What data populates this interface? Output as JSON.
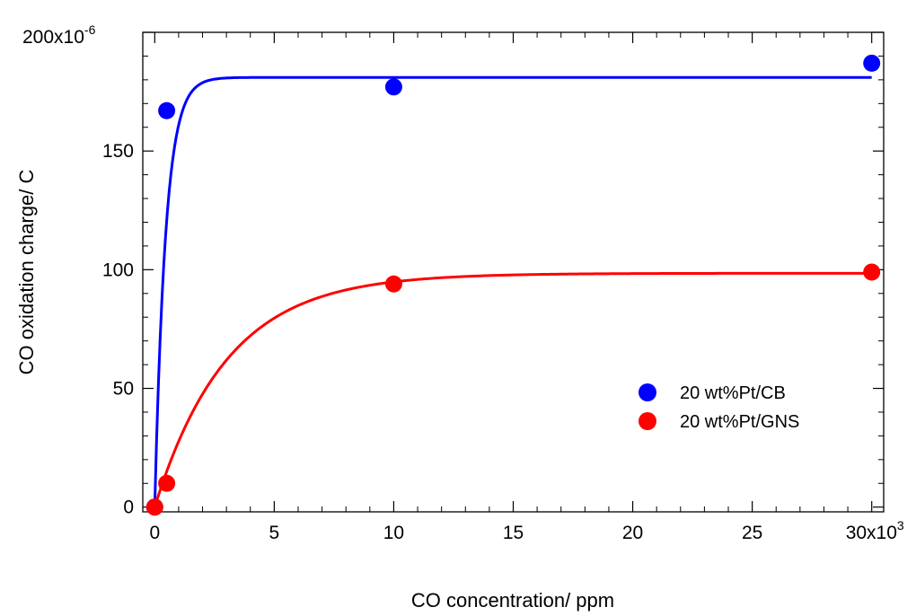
{
  "chart_data": {
    "type": "scatter",
    "xlabel": "CO concentration/ ppm",
    "ylabel": "CO oxidation charge/ C",
    "x_tick_labels": [
      "0",
      "5",
      "10",
      "15",
      "20",
      "25",
      "30x10"
    ],
    "x_tick_values": [
      0,
      5000,
      10000,
      15000,
      20000,
      25000,
      30000
    ],
    "x_exponent": "3",
    "y_tick_labels": [
      "0",
      "50",
      "100",
      "150",
      "200x10"
    ],
    "y_tick_values": [
      0,
      5e-05,
      0.0001,
      0.00015,
      0.0002
    ],
    "y_exponent": "-6",
    "xlim": [
      -500,
      30500
    ],
    "ylim": [
      -2e-06,
      0.0002
    ],
    "grid": false,
    "legend_position": "bottom-right",
    "series": [
      {
        "name": "20 wt%Pt/CB",
        "color": "#0000ff",
        "points": [
          [
            0,
            0
          ],
          [
            500,
            0.000167
          ],
          [
            10000,
            0.000177
          ],
          [
            30000,
            0.000187
          ]
        ],
        "fit": {
          "ymax": 0.000181,
          "rate_per_ppm": 0.0022
        }
      },
      {
        "name": "20 wt%Pt/GNS",
        "color": "#ff0000",
        "points": [
          [
            0,
            0
          ],
          [
            500,
            1e-05
          ],
          [
            10000,
            9.4e-05
          ],
          [
            30000,
            9.9e-05
          ]
        ],
        "fit": {
          "ymax": 9.85e-05,
          "rate_per_ppm": 0.00033
        }
      }
    ]
  }
}
